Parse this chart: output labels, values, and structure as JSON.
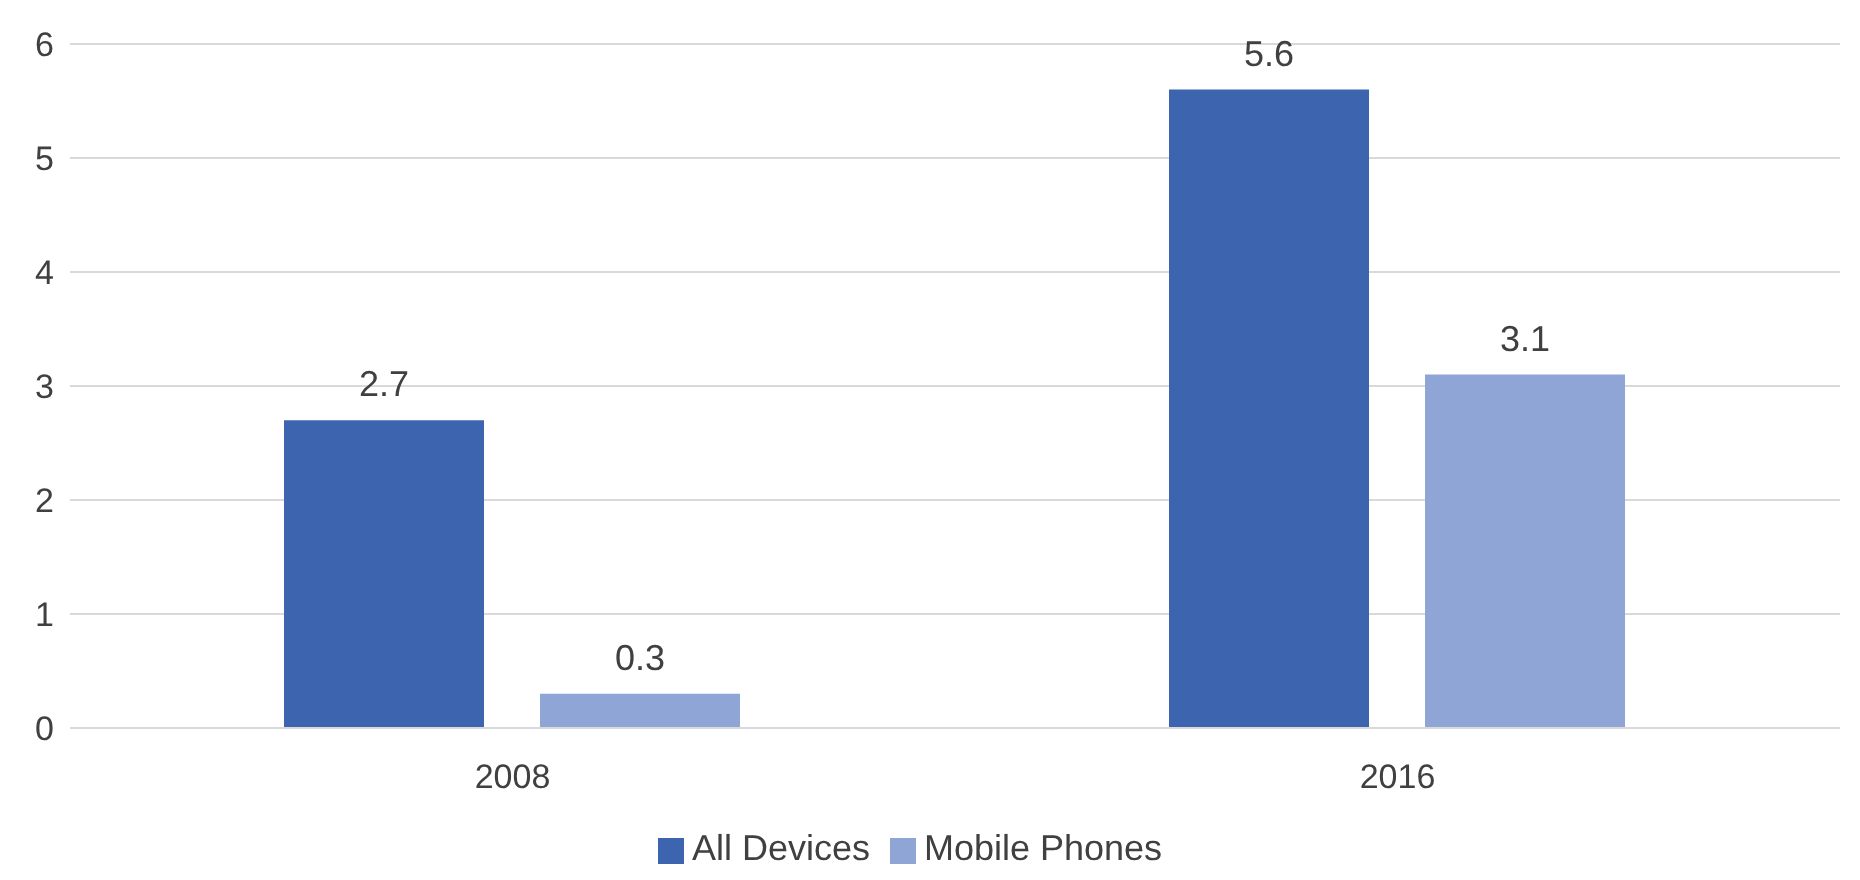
{
  "chart_data": {
    "type": "bar",
    "categories": [
      "2008",
      "2016"
    ],
    "series": [
      {
        "name": "All Devices",
        "color": "#3d64ae",
        "values": [
          2.7,
          5.6
        ]
      },
      {
        "name": "Mobile Phones",
        "color": "#8fa5d6",
        "values": [
          0.3,
          3.1
        ]
      }
    ],
    "ylim": [
      0,
      6
    ],
    "yticks": [
      0,
      1,
      2,
      3,
      4,
      5,
      6
    ],
    "grid": "y",
    "legend": "bottom",
    "data_labels": true
  }
}
